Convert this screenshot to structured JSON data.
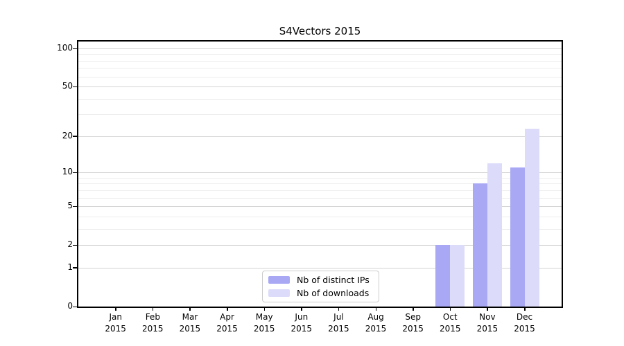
{
  "title": "S4Vectors 2015",
  "colors": {
    "distinct_ips": "#a8a8f5",
    "downloads": "#dcdcfa",
    "major_grid": "#d2d2d2",
    "minor_grid": "#ededed",
    "axis": "#000000"
  },
  "legend": {
    "items": [
      {
        "label": "Nb of distinct IPs",
        "series": "distinct_ips"
      },
      {
        "label": "Nb of downloads",
        "series": "downloads"
      }
    ]
  },
  "chart_data": {
    "type": "bar",
    "title": "S4Vectors 2015",
    "categories": [
      "Jan",
      "Feb",
      "Mar",
      "Apr",
      "May",
      "Jun",
      "Jul",
      "Aug",
      "Sep",
      "Oct",
      "Nov",
      "Dec"
    ],
    "category_year": "2015",
    "series": [
      {
        "name": "Nb of distinct IPs",
        "color_key": "distinct_ips",
        "values": [
          0,
          0,
          0,
          0,
          0,
          0,
          0,
          0,
          0,
          2,
          8,
          11
        ]
      },
      {
        "name": "Nb of downloads",
        "color_key": "downloads",
        "values": [
          0,
          0,
          0,
          0,
          0,
          0,
          0,
          0,
          0,
          2,
          12,
          23
        ]
      }
    ],
    "ylabel": "",
    "xlabel": "",
    "yscale": "log1p",
    "ylim": [
      0,
      100
    ],
    "yticks_major": [
      0,
      1,
      2,
      5,
      10,
      20,
      50,
      100
    ],
    "yticks_minor": [
      3,
      4,
      6,
      7,
      8,
      9,
      30,
      40,
      60,
      70,
      80,
      90
    ],
    "grid": true,
    "legend_position": "lower center"
  }
}
